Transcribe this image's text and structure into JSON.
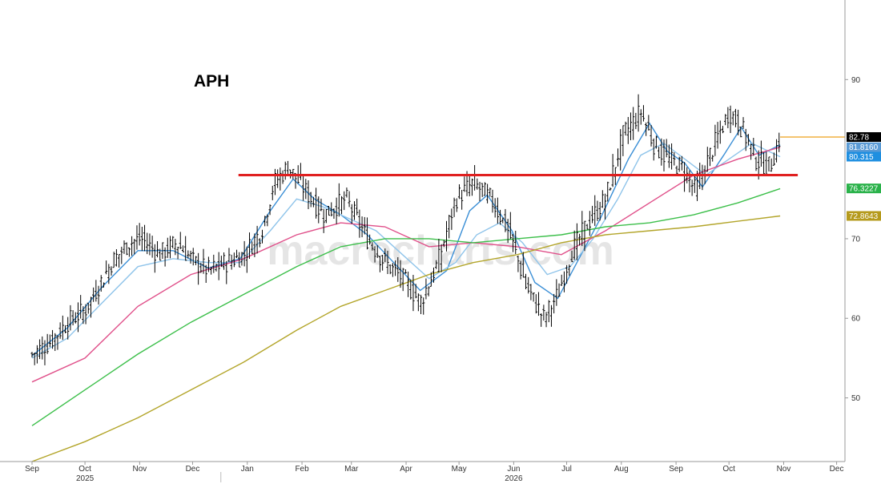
{
  "chart_data": {
    "type": "line",
    "title": "APH",
    "watermark": "macrocharts.com",
    "xlabel": "",
    "ylabel": "",
    "ylim": [
      42,
      100
    ],
    "y_ticks": [
      50,
      60,
      70,
      90
    ],
    "x_ticks": [
      "Sep",
      "Oct",
      "Nov",
      "Dec",
      "Jan",
      "Feb",
      "Mar",
      "Apr",
      "May",
      "Jun",
      "Jul",
      "Aug",
      "Sep",
      "Oct",
      "Nov",
      "Dec"
    ],
    "x_tick_days": [
      0,
      30,
      61,
      91,
      122,
      153,
      181,
      212,
      242,
      273,
      303,
      334,
      365,
      395,
      426,
      456
    ],
    "year_labels": [
      {
        "label": "2025",
        "day": 30
      },
      {
        "label": "2026",
        "day": 273
      }
    ],
    "last_price": 82.78,
    "right_tags": [
      {
        "value": 82.78,
        "label": "82.78",
        "bg": "#000000",
        "fg": "#ffffff"
      },
      {
        "value": 81.5,
        "label": "81.8160",
        "bg": "#5b9bd5",
        "fg": "#ffffff"
      },
      {
        "value": 80.315,
        "label": "80.315",
        "bg": "#1f8fe0",
        "fg": "#ffffff"
      },
      {
        "value": 76.3227,
        "label": "76.3227",
        "bg": "#2ab24a",
        "fg": "#ffffff"
      },
      {
        "value": 72.8643,
        "label": "72.8643",
        "bg": "#b59a1c",
        "fg": "#ffffff"
      }
    ],
    "support_level": {
      "value": 78.0,
      "color": "#e02020"
    },
    "price_line": {
      "value": 82.78,
      "color": "#f0b040"
    },
    "colors": {
      "bars": "#000000",
      "ma_fast": "#3b8fd6",
      "ma_slow": "#8fc4ea",
      "ma_pink": "#e0508a",
      "ma_green": "#3cbf4a",
      "ma_olive": "#b3a52a"
    },
    "price_points": [
      [
        0,
        55.5
      ],
      [
        10,
        57
      ],
      [
        20,
        59.5
      ],
      [
        30,
        61
      ],
      [
        45,
        67
      ],
      [
        55,
        69.5
      ],
      [
        62,
        70
      ],
      [
        72,
        68
      ],
      [
        82,
        69.5
      ],
      [
        92,
        67
      ],
      [
        100,
        66
      ],
      [
        110,
        67
      ],
      [
        120,
        68
      ],
      [
        130,
        71
      ],
      [
        137,
        77
      ],
      [
        145,
        79
      ],
      [
        155,
        76
      ],
      [
        165,
        73
      ],
      [
        178,
        75
      ],
      [
        190,
        70
      ],
      [
        200,
        67
      ],
      [
        210,
        65
      ],
      [
        220,
        62
      ],
      [
        230,
        67
      ],
      [
        240,
        75
      ],
      [
        250,
        77
      ],
      [
        260,
        75
      ],
      [
        270,
        71
      ],
      [
        280,
        64
      ],
      [
        290,
        60
      ],
      [
        298,
        63
      ],
      [
        305,
        68
      ],
      [
        315,
        72
      ],
      [
        325,
        75
      ],
      [
        335,
        83
      ],
      [
        345,
        86
      ],
      [
        352,
        82
      ],
      [
        360,
        80
      ],
      [
        368,
        79
      ],
      [
        376,
        76
      ],
      [
        385,
        81
      ],
      [
        395,
        86
      ],
      [
        402,
        84
      ],
      [
        410,
        80
      ],
      [
        418,
        79
      ],
      [
        424,
        82.8
      ]
    ],
    "series": [
      {
        "key": "ma_fast",
        "points": [
          [
            0,
            55.3
          ],
          [
            20,
            58.8
          ],
          [
            40,
            64
          ],
          [
            60,
            68.5
          ],
          [
            80,
            68.5
          ],
          [
            100,
            66.3
          ],
          [
            118,
            67.5
          ],
          [
            135,
            73.5
          ],
          [
            148,
            77.5
          ],
          [
            160,
            75
          ],
          [
            175,
            73
          ],
          [
            190,
            70.5
          ],
          [
            205,
            67
          ],
          [
            220,
            63.5
          ],
          [
            235,
            66
          ],
          [
            248,
            73.5
          ],
          [
            258,
            75.5
          ],
          [
            272,
            71
          ],
          [
            285,
            64.5
          ],
          [
            298,
            62.5
          ],
          [
            310,
            67.5
          ],
          [
            322,
            72.5
          ],
          [
            338,
            80
          ],
          [
            350,
            84.5
          ],
          [
            360,
            81
          ],
          [
            370,
            79.5
          ],
          [
            380,
            76.5
          ],
          [
            392,
            80.5
          ],
          [
            402,
            84
          ],
          [
            412,
            80.5
          ],
          [
            424,
            81.8
          ]
        ]
      },
      {
        "key": "ma_slow",
        "points": [
          [
            0,
            55
          ],
          [
            20,
            57.5
          ],
          [
            40,
            62
          ],
          [
            60,
            66.5
          ],
          [
            80,
            67.5
          ],
          [
            100,
            67
          ],
          [
            118,
            67
          ],
          [
            135,
            71
          ],
          [
            150,
            75
          ],
          [
            165,
            74
          ],
          [
            180,
            72.5
          ],
          [
            195,
            71
          ],
          [
            210,
            68
          ],
          [
            225,
            65
          ],
          [
            240,
            67
          ],
          [
            252,
            70.5
          ],
          [
            265,
            72
          ],
          [
            278,
            69.5
          ],
          [
            292,
            65.5
          ],
          [
            305,
            66.5
          ],
          [
            318,
            70
          ],
          [
            332,
            75
          ],
          [
            345,
            80.5
          ],
          [
            358,
            82
          ],
          [
            370,
            80
          ],
          [
            382,
            78
          ],
          [
            395,
            80
          ],
          [
            408,
            82
          ],
          [
            424,
            80.3
          ]
        ]
      },
      {
        "key": "ma_pink",
        "points": [
          [
            0,
            52
          ],
          [
            30,
            55
          ],
          [
            60,
            61.5
          ],
          [
            90,
            65.5
          ],
          [
            120,
            67.5
          ],
          [
            150,
            70.5
          ],
          [
            175,
            72
          ],
          [
            200,
            71.5
          ],
          [
            225,
            69
          ],
          [
            250,
            69.5
          ],
          [
            275,
            69
          ],
          [
            300,
            68
          ],
          [
            325,
            71
          ],
          [
            350,
            74.5
          ],
          [
            375,
            78
          ],
          [
            400,
            80
          ],
          [
            424,
            81.5
          ]
        ]
      },
      {
        "key": "ma_green",
        "points": [
          [
            0,
            46.5
          ],
          [
            30,
            51
          ],
          [
            60,
            55.5
          ],
          [
            90,
            59.5
          ],
          [
            120,
            63
          ],
          [
            150,
            66.5
          ],
          [
            175,
            69
          ],
          [
            200,
            70
          ],
          [
            225,
            70
          ],
          [
            250,
            69.5
          ],
          [
            275,
            70
          ],
          [
            300,
            70.5
          ],
          [
            325,
            71.5
          ],
          [
            350,
            72
          ],
          [
            375,
            73
          ],
          [
            400,
            74.5
          ],
          [
            424,
            76.3
          ]
        ]
      },
      {
        "key": "ma_olive",
        "points": [
          [
            0,
            42
          ],
          [
            30,
            44.5
          ],
          [
            60,
            47.5
          ],
          [
            90,
            51
          ],
          [
            120,
            54.5
          ],
          [
            150,
            58.5
          ],
          [
            175,
            61.5
          ],
          [
            200,
            63.5
          ],
          [
            225,
            65.5
          ],
          [
            250,
            67
          ],
          [
            275,
            68
          ],
          [
            300,
            69.5
          ],
          [
            325,
            70.5
          ],
          [
            350,
            71
          ],
          [
            375,
            71.5
          ],
          [
            400,
            72.2
          ],
          [
            424,
            72.86
          ]
        ]
      }
    ]
  }
}
